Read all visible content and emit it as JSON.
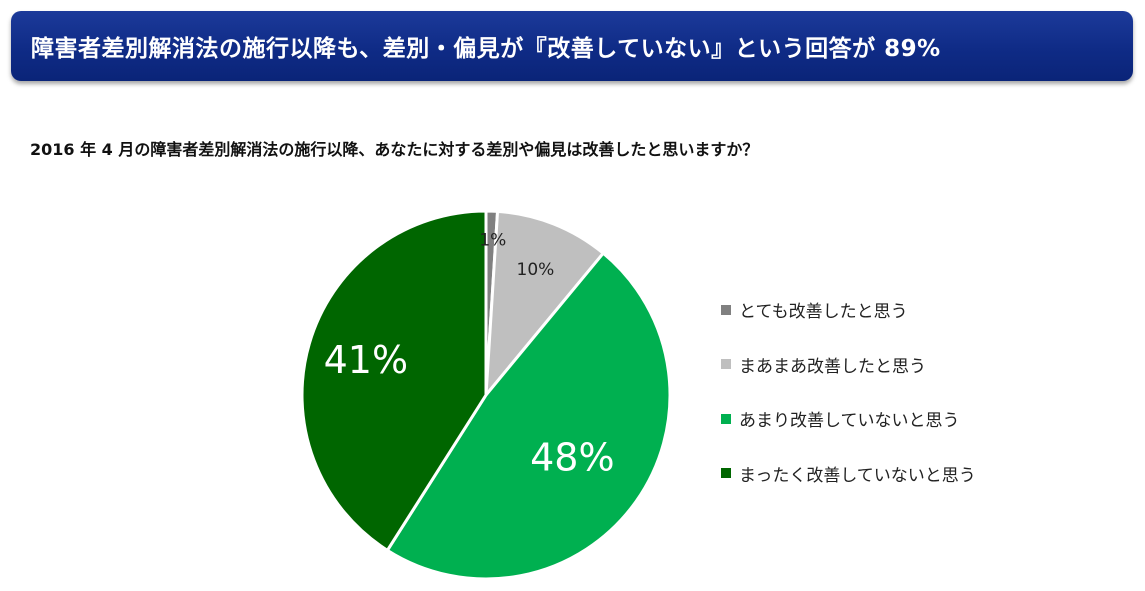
{
  "header": {
    "title": "障害者差別解消法の施行以降も、差別・偏見が『改善していない』という回答が 89%"
  },
  "question": {
    "text": "2016 年 4 月の障害者差別解消法の施行以降、あなたに対する差別や偏見は改善したと思いますか？"
  },
  "chart_data": {
    "type": "pie",
    "title": "",
    "start_angle_deg": 0,
    "direction": "clockwise",
    "slices": [
      {
        "label": "とても改善したと思う",
        "value": 1,
        "display": "1%",
        "color": "#808080",
        "label_color": "#222222"
      },
      {
        "label": "まあまあ改善したと思う",
        "value": 10,
        "display": "10%",
        "color": "#bfbfbf",
        "label_color": "#222222"
      },
      {
        "label": "あまり改善していないと思う",
        "value": 48,
        "display": "48%",
        "color": "#00b050",
        "label_color": "#ffffff"
      },
      {
        "label": "まったく改善していないと思う",
        "value": 41,
        "display": "41%",
        "color": "#006600",
        "label_color": "#ffffff"
      }
    ],
    "legend": {
      "position": "right"
    }
  }
}
